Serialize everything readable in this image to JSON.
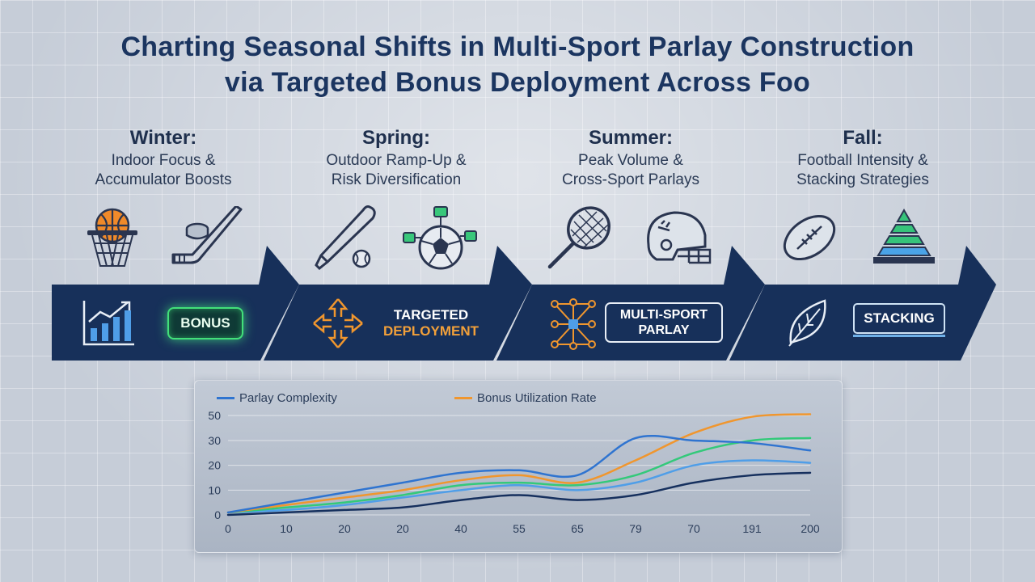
{
  "title": {
    "line1": "Charting Seasonal Shifts in Multi-Sport Parlay Construction",
    "line2": "via Targeted Bonus Deployment Across Foo"
  },
  "seasons": [
    {
      "name": "Winter:",
      "desc1": "Indoor Focus &",
      "desc2": "Accumulator Boosts",
      "icons": [
        "basketball-hoop-icon",
        "hockey-stick-puck-icon"
      ]
    },
    {
      "name": "Spring:",
      "desc1": "Outdoor Ramp-Up &",
      "desc2": "Risk Diversification",
      "icons": [
        "baseball-bat-ball-icon",
        "soccer-ball-network-icon"
      ]
    },
    {
      "name": "Summer:",
      "desc1": "Peak Volume &",
      "desc2": "Cross-Sport Parlays",
      "icons": [
        "tennis-racket-icon",
        "football-helmet-icon"
      ]
    },
    {
      "name": "Fall:",
      "desc1": "Football Intensity &",
      "desc2": "Stacking Strategies",
      "icons": [
        "football-icon",
        "stacked-pyramid-icon"
      ]
    }
  ],
  "badges": {
    "bonus": "BONUS",
    "targeted_line1": "TARGETED",
    "targeted_line2": "DEPLOYMENT",
    "multi_line1": "MULTI-SPORT",
    "multi_line2": "PARLAY",
    "stacking": "STACKING"
  },
  "colors": {
    "navy": "#17305a",
    "blue": "#2f74d0",
    "orange": "#f0962e",
    "green": "#33c97a",
    "light_blue": "#4f9ee8",
    "dark_navy": "#16305e"
  },
  "chart_data": {
    "type": "line",
    "x_tick_labels": [
      "0",
      "10",
      "20",
      "20",
      "40",
      "55",
      "65",
      "79",
      "70",
      "191",
      "200"
    ],
    "y_ticks": [
      0,
      10,
      20,
      30,
      50
    ],
    "legend": [
      "Parlay Complexity",
      "Bonus Utilization Rate"
    ],
    "series": [
      {
        "name": "Parlay Complexity",
        "color": "#2f74d0",
        "values": [
          1,
          5,
          9,
          13,
          17,
          18,
          16,
          32,
          30,
          29,
          26
        ]
      },
      {
        "name": "Bonus Utilization Rate",
        "color": "#f0962e",
        "values": [
          1,
          4,
          7,
          10,
          14,
          16,
          13,
          22,
          36,
          49,
          51
        ]
      },
      {
        "color": "#33c97a",
        "values": [
          1,
          3,
          5,
          8,
          12,
          13,
          12,
          16,
          25,
          30,
          32
        ]
      },
      {
        "color": "#4f9ee8",
        "values": [
          1,
          2,
          4,
          7,
          10,
          12,
          10,
          13,
          20,
          22,
          21
        ]
      },
      {
        "color": "#16305e",
        "values": [
          0,
          1,
          2,
          3,
          6,
          8,
          6,
          8,
          13,
          16,
          17
        ]
      }
    ],
    "grid": true
  }
}
